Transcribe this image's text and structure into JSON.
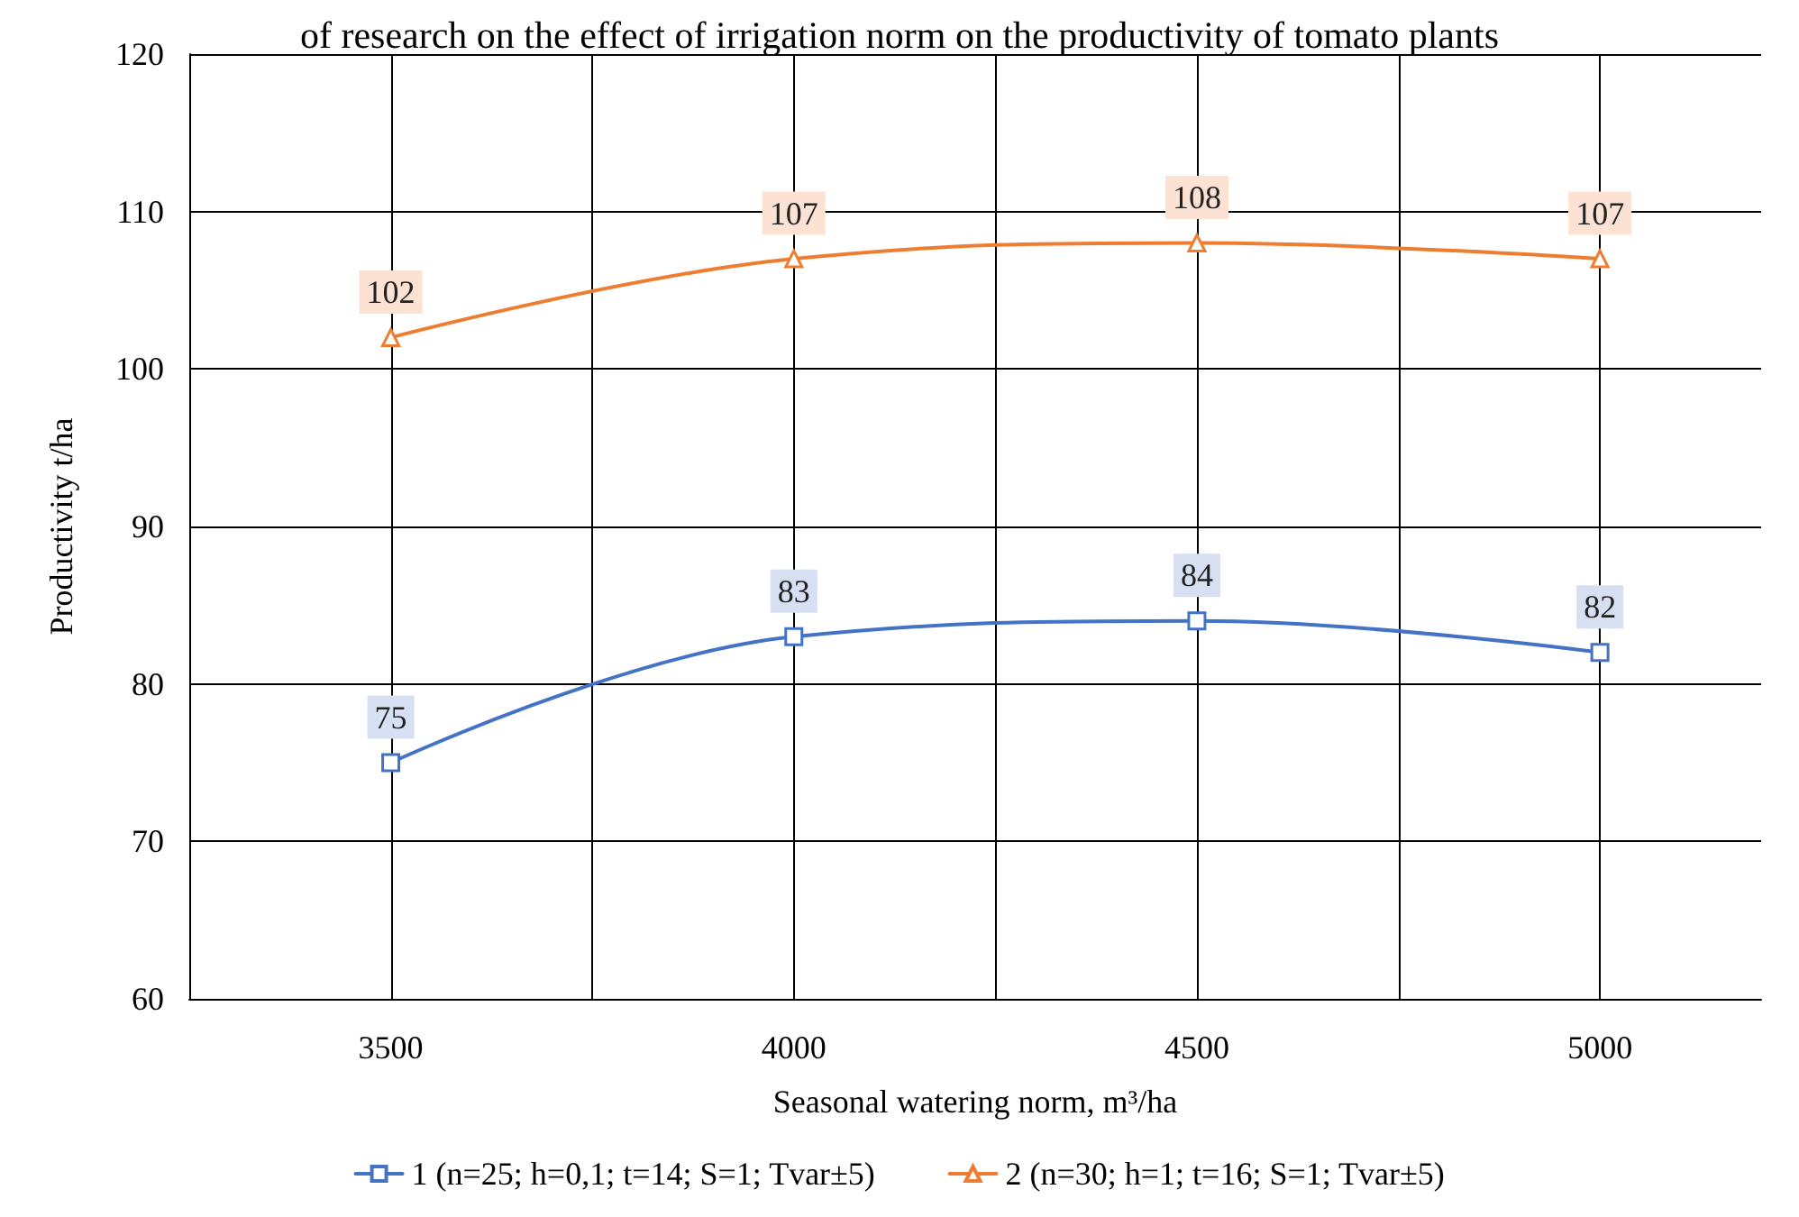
{
  "chart_data": {
    "type": "line",
    "title": "of research on the effect of irrigation norm on the productivity of tomato plants",
    "xlabel": "Seasonal watering norm, m³/ha",
    "ylabel": "Productivity t/ha",
    "x": [
      3500,
      4000,
      4500,
      5000
    ],
    "series": [
      {
        "name": "1 (n=25; h=0,1; t=14; S=1; Tvar±5)",
        "color": "#4472c4",
        "marker": "square",
        "values": [
          75,
          83,
          84,
          82
        ]
      },
      {
        "name": "2 (n=30; h=1; t=16; S=1; Tvar±5)",
        "color": "#ed7d31",
        "marker": "triangle",
        "values": [
          102,
          107,
          108,
          107
        ]
      }
    ],
    "xlim": [
      3250,
      5200
    ],
    "xticks": [
      3500,
      {
        "value": 3750,
        "label": null
      },
      4000,
      {
        "value": 4250,
        "label": null
      },
      4500,
      {
        "value": 4750,
        "label": null
      },
      5000
    ],
    "ylim": [
      60,
      120
    ],
    "yticks": [
      60,
      70,
      80,
      90,
      100,
      110,
      120
    ],
    "grid": true,
    "legend": "bottom",
    "data_labels": true,
    "line_style": "solid"
  }
}
